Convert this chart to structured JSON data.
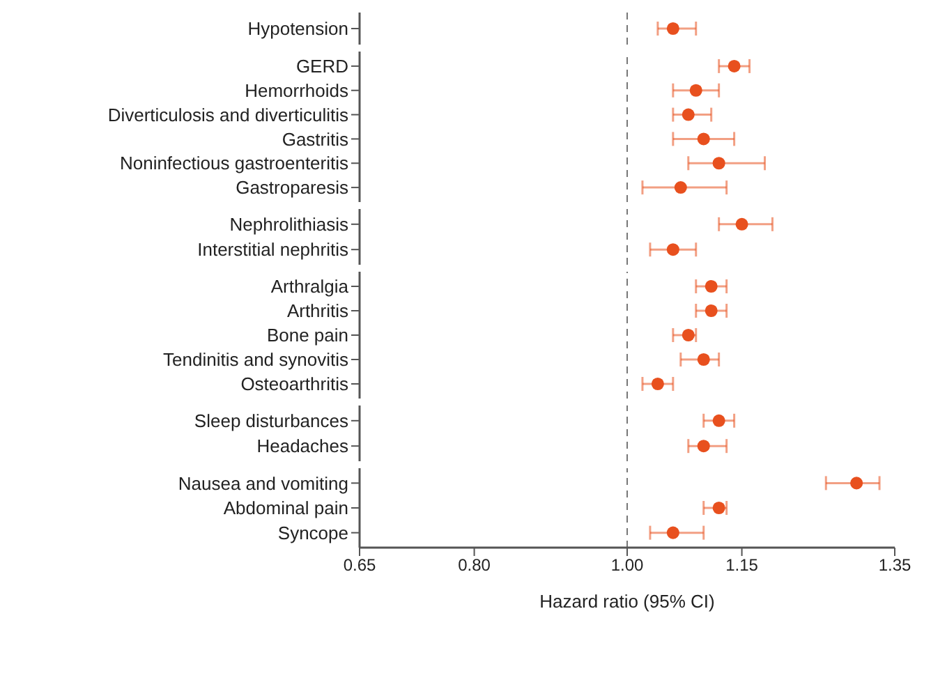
{
  "chart_data": [
    {
      "type": "scatter",
      "orientation": "horizontal",
      "categories": [
        "Hypotension"
      ],
      "values": [
        1.06
      ],
      "errors": [
        [
          1.04,
          1.09
        ]
      ],
      "color": "#e8501e",
      "marker": "circle",
      "xlim": [
        0.65,
        1.35
      ],
      "ref_lines": [
        {
          "axis": "x",
          "value": 1,
          "line_style": "dashed",
          "color": "#777777"
        }
      ],
      "tick_labels": "y"
    },
    {
      "type": "scatter",
      "orientation": "horizontal",
      "categories": [
        "GERD",
        "Hemorrhoids",
        "Diverticulosis and diverticulitis",
        "Gastritis",
        "Noninfectious gastroenteritis",
        "Gastroparesis"
      ],
      "values": [
        1.14,
        1.09,
        1.08,
        1.1,
        1.12,
        1.07
      ],
      "errors": [
        [
          1.12,
          1.16
        ],
        [
          1.06,
          1.12
        ],
        [
          1.06,
          1.11
        ],
        [
          1.06,
          1.14
        ],
        [
          1.08,
          1.18
        ],
        [
          1.02,
          1.13
        ]
      ],
      "color": "#e8501e",
      "marker": "circle",
      "xlim": [
        0.65,
        1.35
      ],
      "ref_lines": [
        {
          "axis": "x",
          "value": 1,
          "line_style": "dashed",
          "color": "#777777"
        }
      ],
      "tick_labels": "y"
    },
    {
      "type": "scatter",
      "orientation": "horizontal",
      "categories": [
        "Nephrolithiasis",
        "Interstitial nephritis"
      ],
      "values": [
        1.15,
        1.06
      ],
      "errors": [
        [
          1.12,
          1.19
        ],
        [
          1.03,
          1.09
        ]
      ],
      "color": "#e8501e",
      "marker": "circle",
      "xlim": [
        0.65,
        1.35
      ],
      "ref_lines": [
        {
          "axis": "x",
          "value": 1,
          "line_style": "dashed",
          "color": "#777777"
        }
      ],
      "tick_labels": "y"
    },
    {
      "type": "scatter",
      "orientation": "horizontal",
      "categories": [
        "Arthralgia",
        "Arthritis",
        "Bone pain",
        "Tendinitis and synovitis",
        "Osteoarthritis"
      ],
      "values": [
        1.11,
        1.11,
        1.08,
        1.1,
        1.04
      ],
      "errors": [
        [
          1.09,
          1.13
        ],
        [
          1.09,
          1.13
        ],
        [
          1.06,
          1.09
        ],
        [
          1.07,
          1.12
        ],
        [
          1.02,
          1.06
        ]
      ],
      "color": "#e8501e",
      "marker": "circle",
      "xlim": [
        0.65,
        1.35
      ],
      "ref_lines": [
        {
          "axis": "x",
          "value": 1,
          "line_style": "dashed",
          "color": "#777777"
        }
      ],
      "tick_labels": "y"
    },
    {
      "type": "scatter",
      "orientation": "horizontal",
      "categories": [
        "Sleep disturbances",
        "Headaches"
      ],
      "values": [
        1.12,
        1.1
      ],
      "errors": [
        [
          1.1,
          1.14
        ],
        [
          1.08,
          1.13
        ]
      ],
      "color": "#e8501e",
      "marker": "circle",
      "xlim": [
        0.65,
        1.35
      ],
      "ref_lines": [
        {
          "axis": "x",
          "value": 1,
          "line_style": "dashed",
          "color": "#777777"
        }
      ],
      "tick_labels": "y"
    },
    {
      "type": "scatter",
      "orientation": "horizontal",
      "categories": [
        "Nausea and vomiting",
        "Abdominal pain",
        "Syncope"
      ],
      "values": [
        1.3,
        1.12,
        1.06
      ],
      "errors": [
        [
          1.26,
          1.33
        ],
        [
          1.1,
          1.13
        ],
        [
          1.03,
          1.1
        ]
      ],
      "color": "#e8501e",
      "marker": "circle",
      "xlim": [
        0.65,
        1.35
      ],
      "xticks": [
        0.65,
        {
          "value": 0.8,
          "label": "0.80"
        },
        {
          "value": 1,
          "label": "1.00"
        },
        1.15,
        1.35
      ],
      "ref_lines": [
        {
          "axis": "x",
          "value": 1,
          "line_style": "dashed",
          "color": "#777777"
        }
      ],
      "xlabel": "Hazard ratio (95% CI)"
    }
  ]
}
